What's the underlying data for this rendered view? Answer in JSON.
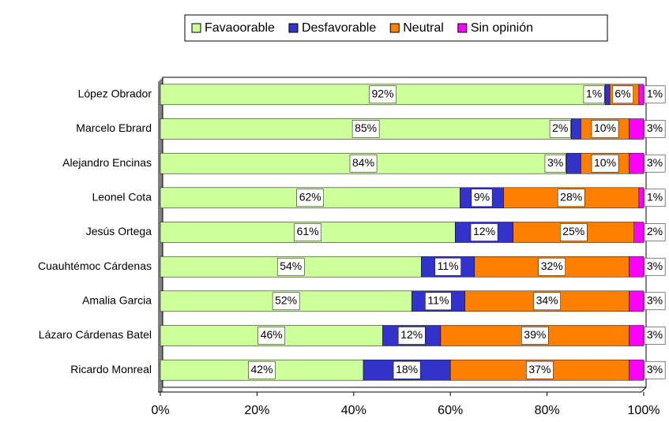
{
  "chart_data": {
    "type": "stacked_barh",
    "categories": [
      "López Obrador",
      "Marcelo Ebrard",
      "Alejandro Encinas",
      "Leonel Cota",
      "Jesús Ortega",
      "Cuauhtémoc Cárdenas",
      "Amalia Garcia",
      "Lázaro Cárdenas Batel",
      "Ricardo Monreal"
    ],
    "series": [
      {
        "name": "Favaoorable",
        "color": "#ccff99",
        "values": [
          92,
          85,
          84,
          62,
          61,
          54,
          52,
          46,
          42
        ],
        "value_labels": [
          "92%",
          "85%",
          "84%",
          "62%",
          "61%",
          "54%",
          "52%",
          "46%",
          "42%"
        ]
      },
      {
        "name": "Desfavorable",
        "color": "#3333cc",
        "values": [
          1,
          2,
          3,
          9,
          12,
          11,
          11,
          12,
          18
        ],
        "value_labels": [
          "1%",
          "2%",
          "3%",
          "9%",
          "12%",
          "11%",
          "11%",
          "12%",
          "18%"
        ]
      },
      {
        "name": "Neutral",
        "color": "#ff8000",
        "values": [
          6,
          10,
          10,
          28,
          25,
          32,
          34,
          39,
          37
        ],
        "value_labels": [
          "6%",
          "10%",
          "10%",
          "28%",
          "25%",
          "32%",
          "34%",
          "39%",
          "37%"
        ]
      },
      {
        "name": "Sin opinión",
        "color": "#ff00ff",
        "values": [
          1,
          3,
          3,
          1,
          2,
          3,
          3,
          3,
          3
        ],
        "value_labels": [
          "1%",
          "3%",
          "3%",
          "1%",
          "2%",
          "3%",
          "3%",
          "3%",
          "3%"
        ]
      }
    ],
    "xlim": [
      0,
      100
    ],
    "xticks": [
      {
        "value": 0,
        "label": "0%"
      },
      {
        "value": 20,
        "label": "20%"
      },
      {
        "value": 40,
        "label": "40%"
      },
      {
        "value": 60,
        "label": "60%"
      },
      {
        "value": 80,
        "label": "80%"
      },
      {
        "value": 100,
        "label": "100%"
      }
    ],
    "legend": "top"
  }
}
